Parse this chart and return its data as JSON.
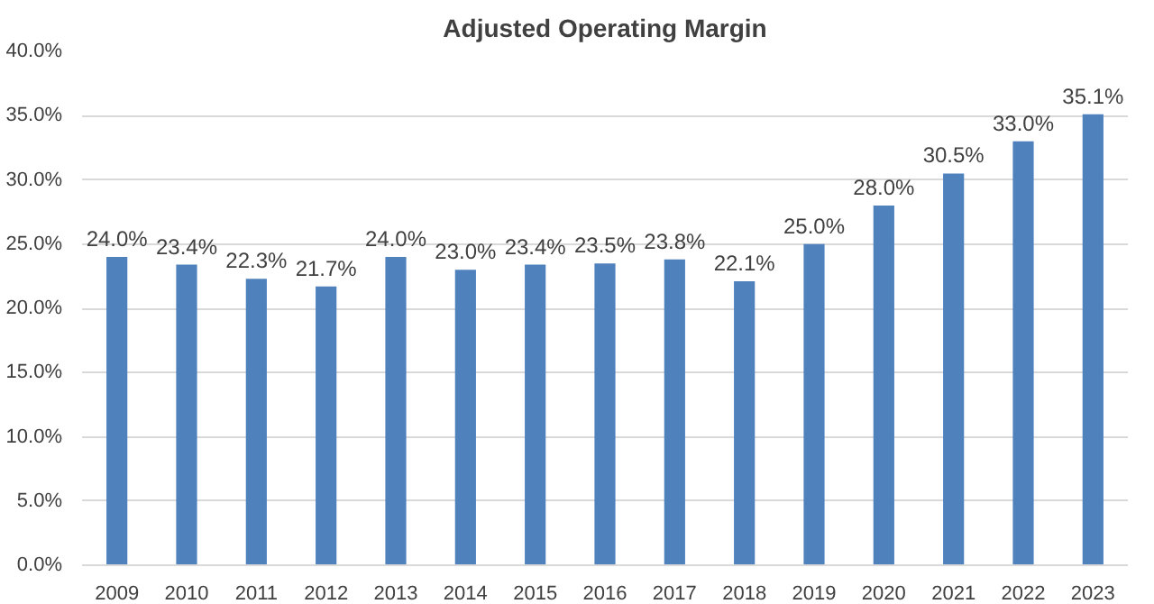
{
  "chart_data": {
    "type": "bar",
    "title": "Adjusted Operating Margin",
    "categories": [
      "2009",
      "2010",
      "2011",
      "2012",
      "2013",
      "2014",
      "2015",
      "2016",
      "2017",
      "2018",
      "2019",
      "2020",
      "2021",
      "2022",
      "2023"
    ],
    "values": [
      24.0,
      23.4,
      22.3,
      21.7,
      24.0,
      23.0,
      23.4,
      23.5,
      23.8,
      22.1,
      25.0,
      28.0,
      30.5,
      33.0,
      35.1
    ],
    "value_labels": [
      "24.0%",
      "23.4%",
      "22.3%",
      "21.7%",
      "24.0%",
      "23.0%",
      "23.4%",
      "23.5%",
      "23.8%",
      "22.1%",
      "25.0%",
      "28.0%",
      "30.5%",
      "33.0%",
      "35.1%"
    ],
    "color": "#4f81bd",
    "ylim": [
      0,
      40
    ],
    "yticks": [
      {
        "value": 0,
        "label": "0.0%"
      },
      {
        "value": 5,
        "label": "5.0%"
      },
      {
        "value": 10,
        "label": "10.0%"
      },
      {
        "value": 15,
        "label": "15.0%"
      },
      {
        "value": 20,
        "label": "20.0%"
      },
      {
        "value": 25,
        "label": "25.0%"
      },
      {
        "value": 30,
        "label": "30.0%"
      },
      {
        "value": 35,
        "label": "35.0%"
      },
      {
        "value": 40,
        "label": "40.0%"
      }
    ],
    "grid": "y"
  }
}
